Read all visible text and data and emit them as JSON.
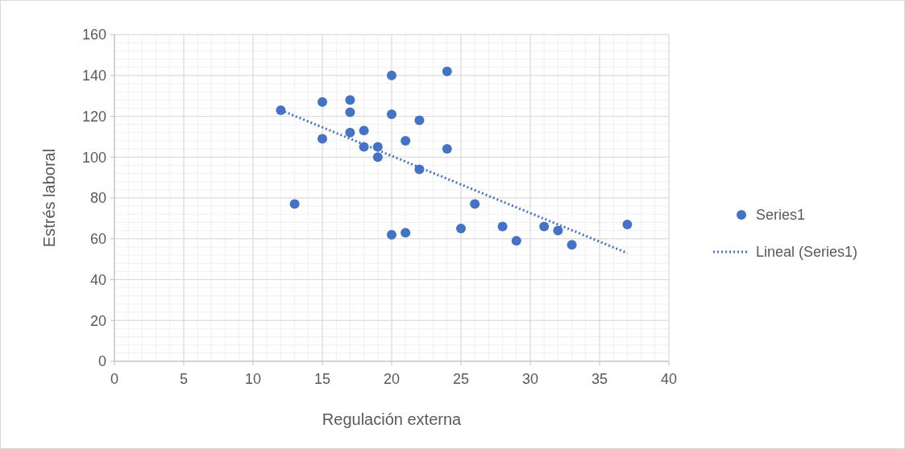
{
  "chart_data": {
    "type": "scatter",
    "xlabel": "Regulación externa",
    "ylabel": "Estrés laboral",
    "xlim": [
      0,
      40
    ],
    "ylim": [
      0,
      160
    ],
    "xticks": [
      0,
      5,
      10,
      15,
      20,
      25,
      30,
      35,
      40
    ],
    "yticks": [
      0,
      20,
      40,
      60,
      80,
      100,
      120,
      140,
      160
    ],
    "grid": true,
    "legend": "right",
    "series": [
      {
        "name": "Series1",
        "color": "#4472c4",
        "marker": "circle",
        "x": [
          12,
          13,
          15,
          15,
          17,
          17,
          17,
          18,
          18,
          19,
          19,
          20,
          20,
          20,
          21,
          21,
          22,
          22,
          24,
          24,
          25,
          26,
          28,
          29,
          31,
          32,
          33,
          37
        ],
        "values": [
          123,
          77,
          127,
          109,
          128,
          122,
          112,
          113,
          105,
          105,
          100,
          140,
          121,
          62,
          108,
          63,
          118,
          94,
          142,
          104,
          65,
          77,
          66,
          59,
          66,
          64,
          57,
          67
        ]
      },
      {
        "name": "Lineal (Series1)",
        "type": "line",
        "color": "#4472c4",
        "line_style": "dotted",
        "marker": "none",
        "x": [
          12,
          37
        ],
        "values": [
          123,
          53
        ]
      }
    ]
  }
}
